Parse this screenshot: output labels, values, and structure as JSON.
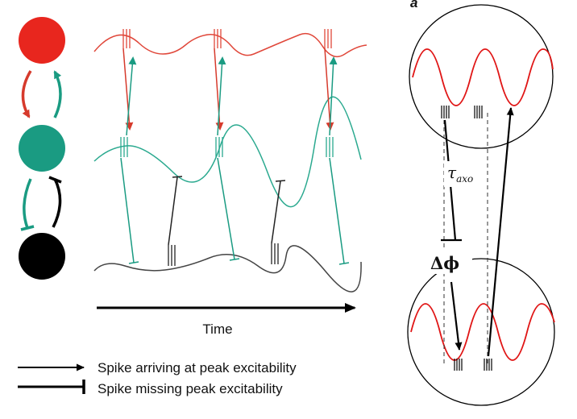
{
  "left_panel": {
    "populations": [
      {
        "name": "red",
        "color": "#e8261e"
      },
      {
        "name": "teal",
        "color": "#1a9b82"
      },
      {
        "name": "black",
        "color": "#000000"
      }
    ],
    "time_label": "Time",
    "legend": [
      {
        "symbol": "arrow",
        "text": "Spike arriving at peak excitability"
      },
      {
        "symbol": "bar",
        "text": "Spike missing peak excitability"
      }
    ]
  },
  "right_panel": {
    "panel_letter": "a",
    "delay_label": "τ",
    "delay_subscript": "axo",
    "phase_label": "Δϕ",
    "wave_color": "#e01515"
  }
}
